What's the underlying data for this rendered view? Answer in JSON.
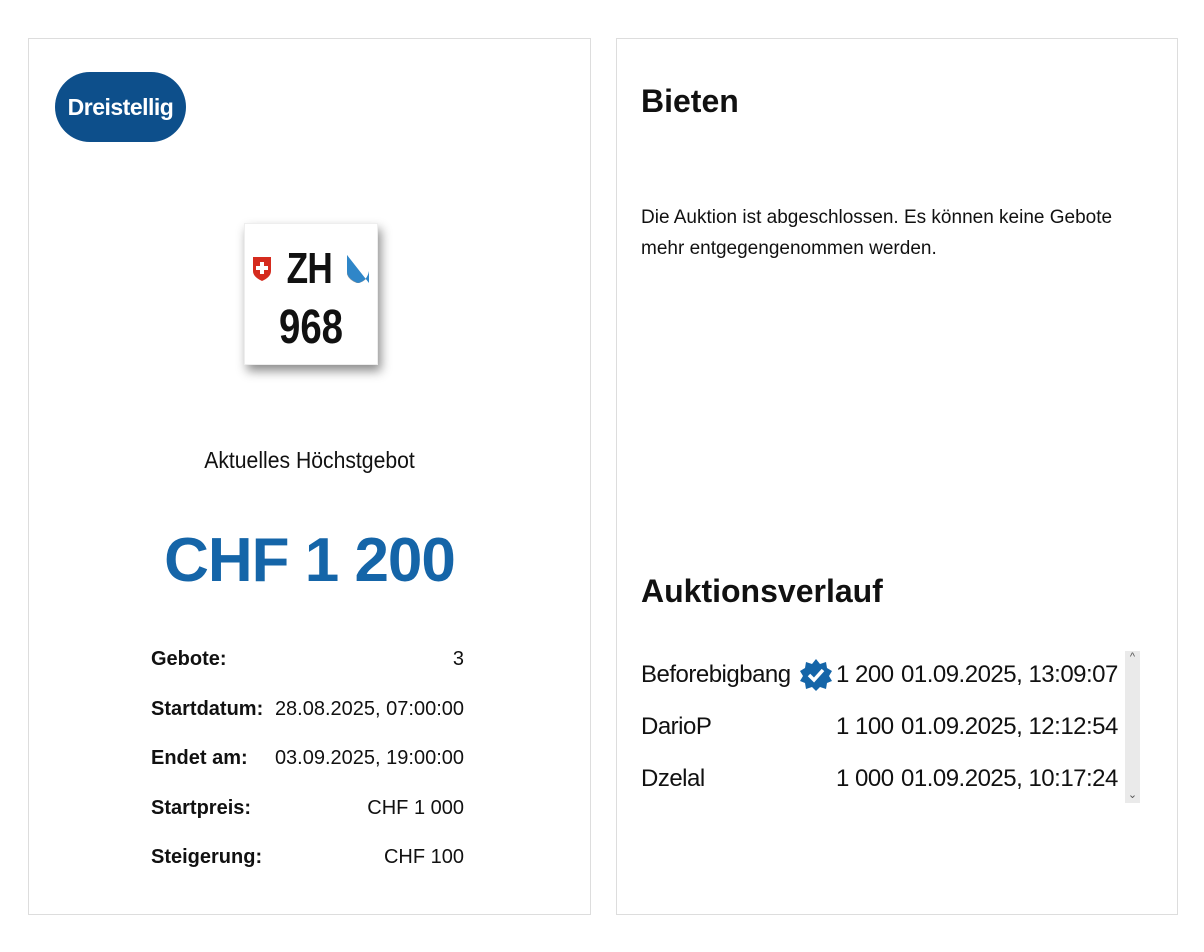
{
  "badge": "Dreistellig",
  "plate": {
    "canton": "ZH",
    "number": "968"
  },
  "current_bid_label": "Aktuelles Höchstgebot",
  "current_bid": "CHF 1 200",
  "details": [
    {
      "label": "Gebote:",
      "value": "3"
    },
    {
      "label": "Startdatum:",
      "value": "28.08.2025, 07:00:00"
    },
    {
      "label": "Endet am:",
      "value": "03.09.2025, 19:00:00"
    },
    {
      "label": "Startpreis:",
      "value": "CHF 1 000"
    },
    {
      "label": "Steigerung:",
      "value": "CHF 100"
    }
  ],
  "bid_title": "Bieten",
  "closed_message": "Die Auktion ist abgeschlossen. Es können keine Gebote mehr entgegengenommen werden.",
  "history_title": "Auktionsverlauf",
  "history": [
    {
      "user": "Beforebigbang",
      "verified": true,
      "amount": "1 200",
      "time": "01.09.2025, 13:09:07"
    },
    {
      "user": "DarioP",
      "verified": false,
      "amount": "1 100",
      "time": "01.09.2025, 12:12:54"
    },
    {
      "user": "Dzelal",
      "verified": false,
      "amount": "1 000",
      "time": "01.09.2025, 10:17:24"
    }
  ],
  "colors": {
    "badge": "#0d4f8b",
    "price": "#1565a8",
    "verified": "#1565a8"
  }
}
